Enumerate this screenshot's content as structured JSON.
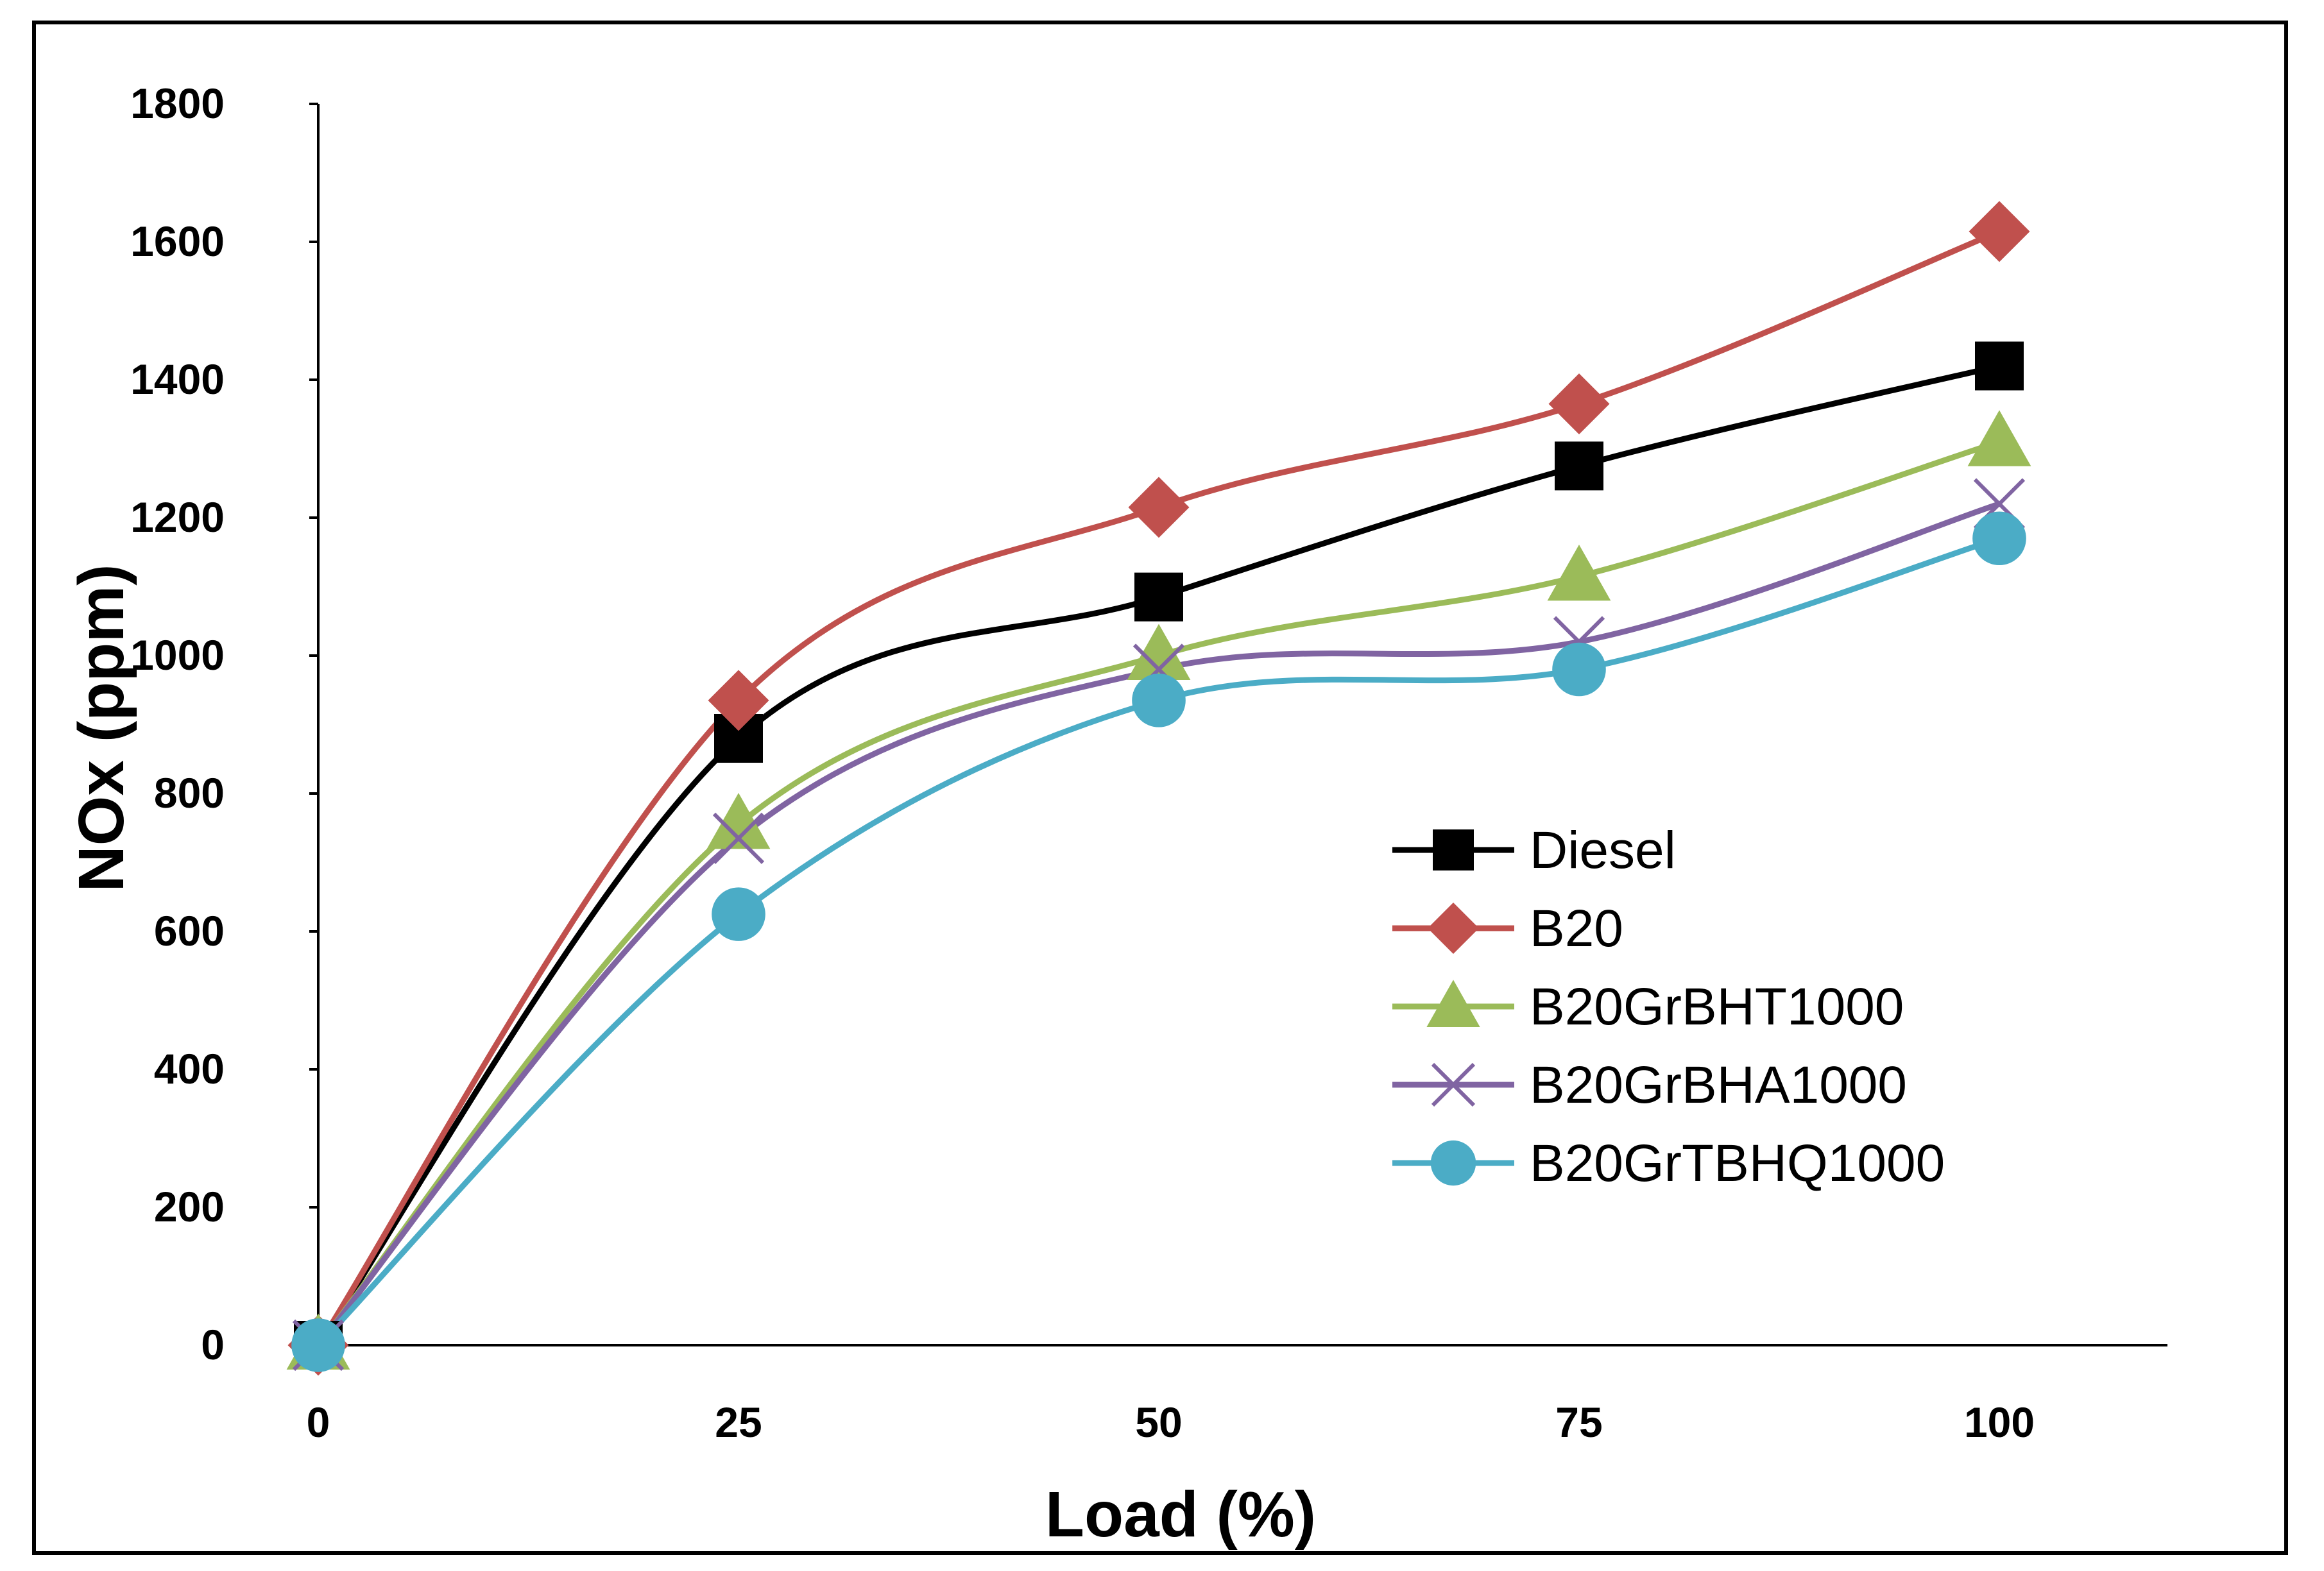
{
  "chart_data": {
    "type": "line",
    "title": "",
    "xlabel": "Load (%)",
    "ylabel": "NOx (ppm)",
    "x": [
      0,
      25,
      50,
      75,
      100
    ],
    "xlim": [
      0,
      110
    ],
    "ylim": [
      0,
      1800
    ],
    "yticks": [
      0,
      200,
      400,
      600,
      800,
      1000,
      1200,
      1400,
      1600,
      1800
    ],
    "xticks": [
      0,
      25,
      50,
      75,
      100
    ],
    "grid": false,
    "legend_position": "center-right",
    "series": [
      {
        "name": "Diesel",
        "values": [
          0,
          880,
          1085,
          1275,
          1420
        ],
        "color": "#000000",
        "marker": "square"
      },
      {
        "name": "B20",
        "values": [
          0,
          935,
          1215,
          1365,
          1615
        ],
        "color": "#C0504D",
        "marker": "diamond"
      },
      {
        "name": "B20GrBHT1000",
        "values": [
          0,
          755,
          1000,
          1115,
          1310
        ],
        "color": "#9BBB59",
        "marker": "triangle"
      },
      {
        "name": "B20GrBHA1000",
        "values": [
          0,
          735,
          980,
          1020,
          1220
        ],
        "color": "#8064A2",
        "marker": "x"
      },
      {
        "name": "B20GrTBHQ1000",
        "values": [
          0,
          625,
          935,
          980,
          1170
        ],
        "color": "#4BACC6",
        "marker": "circle"
      }
    ]
  }
}
